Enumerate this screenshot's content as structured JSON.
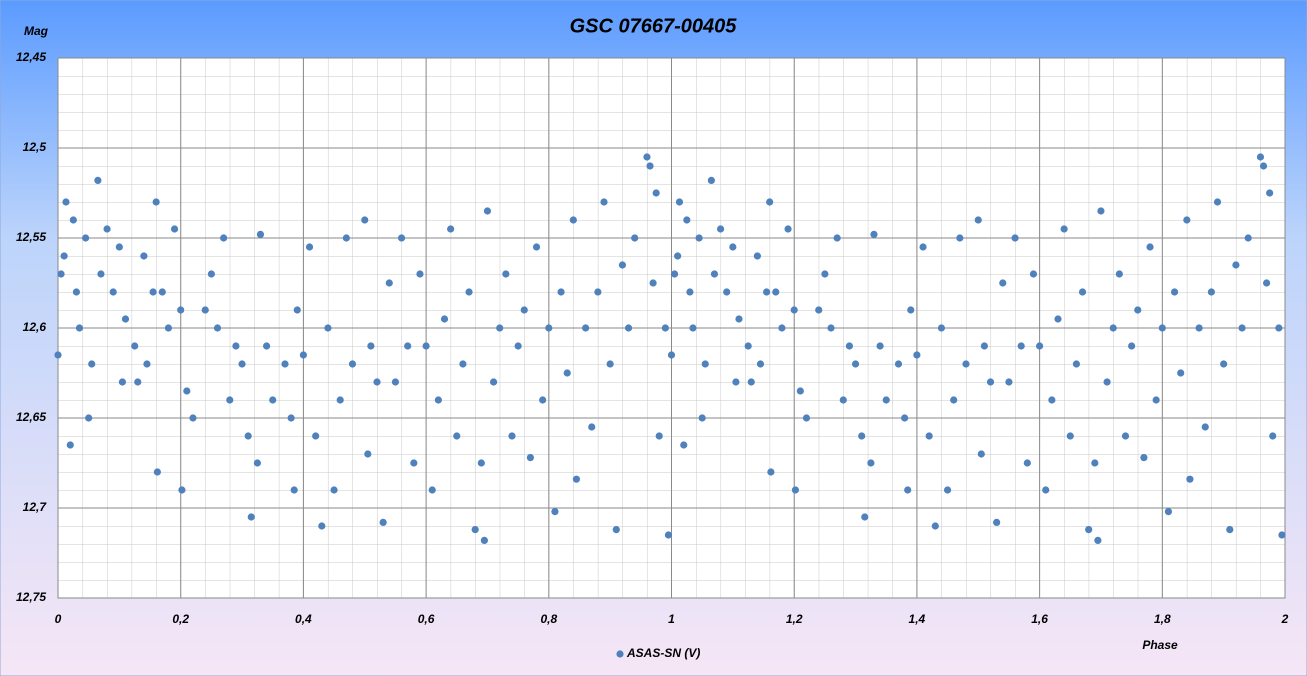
{
  "chart_data": {
    "type": "scatter",
    "title": "GSC 07667-00405",
    "y_label": "Mag",
    "x_label": "Phase",
    "y_inverted": true,
    "grid": true,
    "legend": "bottom",
    "xlim": [
      0,
      2
    ],
    "ylim": [
      12.45,
      12.75
    ],
    "xticks": [
      0,
      {
        "value": 0.2,
        "label": "0,2"
      },
      {
        "value": 0.4,
        "label": "0,4"
      },
      {
        "value": 0.6,
        "label": "0,6"
      },
      {
        "value": 0.8,
        "label": "0,8"
      },
      1,
      {
        "value": 1.2,
        "label": "1,2"
      },
      {
        "value": 1.4,
        "label": "1,4"
      },
      {
        "value": 1.6,
        "label": "1,6"
      },
      {
        "value": 1.8,
        "label": "1,8"
      },
      2
    ],
    "yticks": [
      {
        "value": 12.45,
        "label": "12,45"
      },
      {
        "value": 12.5,
        "label": "12,5"
      },
      {
        "value": 12.55,
        "label": "12,55"
      },
      {
        "value": 12.6,
        "label": "12,6"
      },
      {
        "value": 12.65,
        "label": "12,65"
      },
      {
        "value": 12.7,
        "label": "12,7"
      },
      {
        "value": 12.75,
        "label": "12,75"
      }
    ],
    "series": [
      {
        "name": "ASAS-SN (V)",
        "color": "#4f81bd",
        "x": [
          0,
          0.005,
          0.01,
          0.013,
          0.02,
          0.025,
          0.03,
          0.035,
          0.045,
          0.05,
          0.055,
          0.065,
          0.07,
          0.08,
          0.09,
          0.1,
          0.105,
          0.11,
          0.125,
          0.13,
          0.14,
          0.145,
          0.155,
          0.16,
          0.162,
          0.17,
          0.18,
          0.19,
          0.2,
          0.202,
          0.21,
          0.22,
          0.24,
          0.25,
          0.26,
          0.27,
          0.28,
          0.29,
          0.3,
          0.31,
          0.315,
          0.325,
          0.33,
          0.34,
          0.35,
          0.37,
          0.38,
          0.385,
          0.39,
          0.4,
          0.41,
          0.42,
          0.43,
          0.44,
          0.45,
          0.46,
          0.47,
          0.48,
          0.5,
          0.505,
          0.51,
          0.52,
          0.53,
          0.54,
          0.55,
          0.56,
          0.57,
          0.58,
          0.59,
          0.6,
          0.61,
          0.62,
          0.63,
          0.64,
          0.65,
          0.66,
          0.67,
          0.68,
          0.69,
          0.695,
          0.7,
          0.71,
          0.72,
          0.73,
          0.74,
          0.75,
          0.76,
          0.77,
          0.78,
          0.79,
          0.8,
          0.81,
          0.82,
          0.83,
          0.84,
          0.845,
          0.86,
          0.87,
          0.88,
          0.89,
          0.9,
          0.91,
          0.92,
          0.93,
          0.94,
          0.96,
          0.965,
          0.97,
          0.975,
          0.98,
          0.99,
          0.995,
          1,
          1.005,
          1.01,
          1.013,
          1.02,
          1.025,
          1.03,
          1.035,
          1.045,
          1.05,
          1.055,
          1.065,
          1.07,
          1.08,
          1.09,
          1.1,
          1.105,
          1.11,
          1.125,
          1.13,
          1.14,
          1.145,
          1.155,
          1.16,
          1.162,
          1.17,
          1.18,
          1.19,
          1.2,
          1.202,
          1.21,
          1.22,
          1.24,
          1.25,
          1.26,
          1.27,
          1.28,
          1.29,
          1.3,
          1.31,
          1.315,
          1.325,
          1.33,
          1.34,
          1.35,
          1.37,
          1.38,
          1.385,
          1.39,
          1.4,
          1.41,
          1.42,
          1.43,
          1.44,
          1.45,
          1.46,
          1.47,
          1.48,
          1.5,
          1.505,
          1.51,
          1.52,
          1.53,
          1.54,
          1.55,
          1.56,
          1.57,
          1.58,
          1.59,
          1.6,
          1.61,
          1.62,
          1.63,
          1.64,
          1.65,
          1.66,
          1.67,
          1.68,
          1.69,
          1.695,
          1.7,
          1.71,
          1.72,
          1.73,
          1.74,
          1.75,
          1.76,
          1.77,
          1.78,
          1.79,
          1.8,
          1.81,
          1.82,
          1.83,
          1.84,
          1.845,
          1.86,
          1.87,
          1.88,
          1.89,
          1.9,
          1.91,
          1.92,
          1.93,
          1.94,
          1.96,
          1.965,
          1.97,
          1.975,
          1.98,
          1.99,
          1.995
        ],
        "values": [
          12.615,
          12.57,
          12.56,
          12.53,
          12.665,
          12.54,
          12.58,
          12.6,
          12.55,
          12.65,
          12.62,
          12.518,
          12.57,
          12.545,
          12.58,
          12.555,
          12.63,
          12.595,
          12.61,
          12.63,
          12.56,
          12.62,
          12.58,
          12.53,
          12.68,
          12.58,
          12.6,
          12.545,
          12.59,
          12.69,
          12.635,
          12.65,
          12.59,
          12.57,
          12.6,
          12.55,
          12.64,
          12.61,
          12.62,
          12.66,
          12.705,
          12.675,
          12.548,
          12.61,
          12.64,
          12.62,
          12.65,
          12.69,
          12.59,
          12.615,
          12.555,
          12.66,
          12.71,
          12.6,
          12.69,
          12.64,
          12.55,
          12.62,
          12.54,
          12.67,
          12.61,
          12.63,
          12.708,
          12.575,
          12.63,
          12.55,
          12.61,
          12.675,
          12.57,
          12.61,
          12.69,
          12.64,
          12.595,
          12.545,
          12.66,
          12.62,
          12.58,
          12.712,
          12.675,
          12.718,
          12.535,
          12.63,
          12.6,
          12.57,
          12.66,
          12.61,
          12.59,
          12.672,
          12.555,
          12.64,
          12.6,
          12.702,
          12.58,
          12.625,
          12.54,
          12.684,
          12.6,
          12.655,
          12.58,
          12.53,
          12.62,
          12.712,
          12.565,
          12.6,
          12.55,
          12.505,
          12.51,
          12.575,
          12.525,
          12.66,
          12.6,
          12.715,
          12.615,
          12.57,
          12.56,
          12.53,
          12.665,
          12.54,
          12.58,
          12.6,
          12.55,
          12.65,
          12.62,
          12.518,
          12.57,
          12.545,
          12.58,
          12.555,
          12.63,
          12.595,
          12.61,
          12.63,
          12.56,
          12.62,
          12.58,
          12.53,
          12.68,
          12.58,
          12.6,
          12.545,
          12.59,
          12.69,
          12.635,
          12.65,
          12.59,
          12.57,
          12.6,
          12.55,
          12.64,
          12.61,
          12.62,
          12.66,
          12.705,
          12.675,
          12.548,
          12.61,
          12.64,
          12.62,
          12.65,
          12.69,
          12.59,
          12.615,
          12.555,
          12.66,
          12.71,
          12.6,
          12.69,
          12.64,
          12.55,
          12.62,
          12.54,
          12.67,
          12.61,
          12.63,
          12.708,
          12.575,
          12.63,
          12.55,
          12.61,
          12.675,
          12.57,
          12.61,
          12.69,
          12.64,
          12.595,
          12.545,
          12.66,
          12.62,
          12.58,
          12.712,
          12.675,
          12.718,
          12.535,
          12.63,
          12.6,
          12.57,
          12.66,
          12.61,
          12.59,
          12.672,
          12.555,
          12.64,
          12.6,
          12.702,
          12.58,
          12.625,
          12.54,
          12.684,
          12.6,
          12.655,
          12.58,
          12.53,
          12.62,
          12.712,
          12.565,
          12.6,
          12.55,
          12.505,
          12.51,
          12.575,
          12.525,
          12.66,
          12.6,
          12.715
        ]
      }
    ]
  }
}
